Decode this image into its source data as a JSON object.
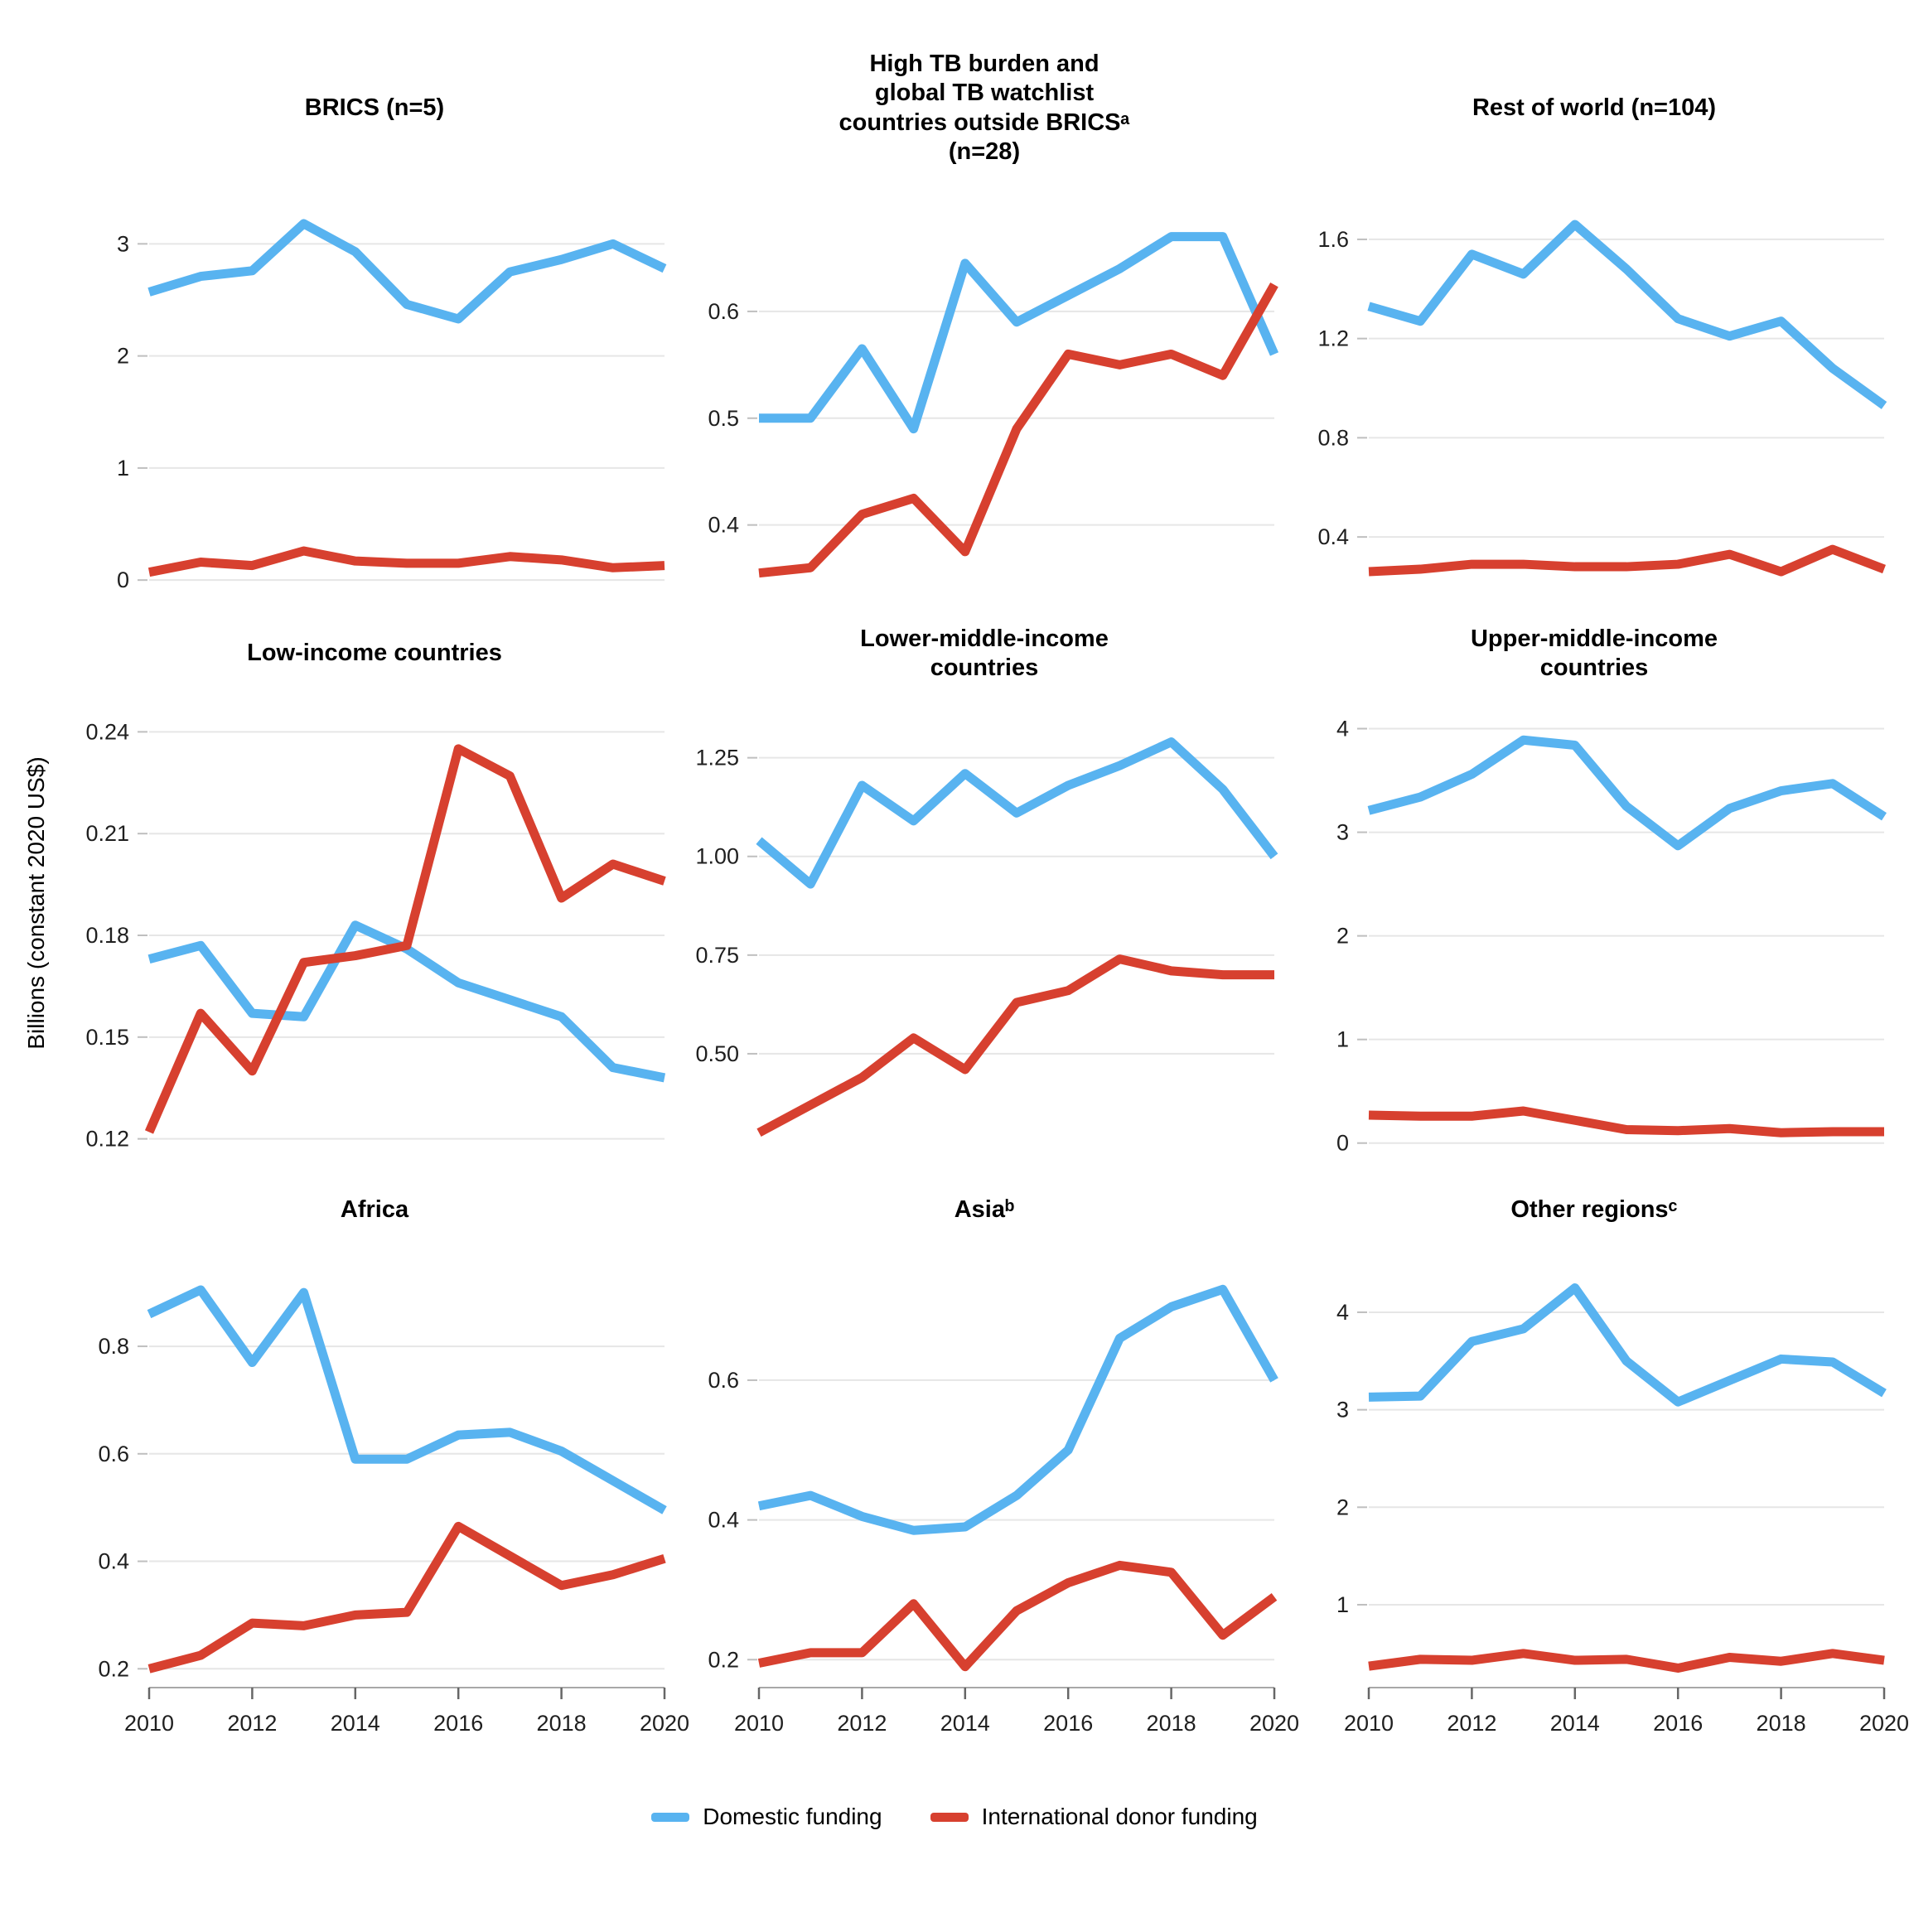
{
  "figure": {
    "y_axis_label": "Billions (constant 2020 US$)",
    "gridline_color": "#e6e6e6",
    "axis_line_color": "#a8a8a8",
    "tick_mark_color": "#bfbfbf",
    "tick_text_color": "#1f1f1f"
  },
  "legend": {
    "items": [
      {
        "label": "Domestic funding",
        "color": "#58B3F0"
      },
      {
        "label": "International donor funding",
        "color": "#D7402F"
      }
    ]
  },
  "chart_data": [
    {
      "type": "line",
      "id": "brics",
      "title": "BRICS (n=5)",
      "x": [
        2010,
        2011,
        2012,
        2013,
        2014,
        2015,
        2016,
        2017,
        2018,
        2019,
        2020
      ],
      "x_ticks": [
        2010,
        2012,
        2014,
        2016,
        2018,
        2020
      ],
      "y_tick_values": [
        0,
        1,
        2,
        3
      ],
      "y_tick_labels": [
        "0",
        "1",
        "2",
        "3"
      ],
      "ylim": [
        -0.08,
        3.35
      ],
      "series": [
        {
          "name": "Domestic funding",
          "color": "#58B3F0",
          "values": [
            2.57,
            2.71,
            2.76,
            3.18,
            2.93,
            2.46,
            2.33,
            2.75,
            2.86,
            3.0,
            2.78
          ]
        },
        {
          "name": "International donor funding",
          "color": "#D7402F",
          "values": [
            0.07,
            0.16,
            0.13,
            0.26,
            0.17,
            0.15,
            0.15,
            0.21,
            0.18,
            0.11,
            0.13
          ]
        }
      ]
    },
    {
      "type": "line",
      "id": "high-tb-burden-watchlist",
      "title": "High TB burden and\nglobal TB watchlist\ncountries outside BRICSᵃ\n(n=28)",
      "x": [
        2010,
        2011,
        2012,
        2013,
        2014,
        2015,
        2016,
        2017,
        2018,
        2019,
        2020
      ],
      "x_ticks": [
        2010,
        2012,
        2014,
        2016,
        2018,
        2020
      ],
      "y_tick_values": [
        0.4,
        0.5,
        0.6
      ],
      "y_tick_labels": [
        "0.4",
        "0.5",
        "0.6"
      ],
      "ylim": [
        0.34,
        0.7
      ],
      "series": [
        {
          "name": "Domestic funding",
          "color": "#58B3F0",
          "values": [
            0.5,
            0.5,
            0.565,
            0.49,
            0.645,
            0.59,
            0.615,
            0.64,
            0.67,
            0.67,
            0.56
          ]
        },
        {
          "name": "International donor funding",
          "color": "#D7402F",
          "values": [
            0.355,
            0.36,
            0.41,
            0.425,
            0.375,
            0.49,
            0.56,
            0.55,
            0.56,
            0.54,
            0.625
          ]
        }
      ]
    },
    {
      "type": "line",
      "id": "rest-of-world",
      "title": "Rest of world (n=104)",
      "x": [
        2010,
        2011,
        2012,
        2013,
        2014,
        2015,
        2016,
        2017,
        2018,
        2019,
        2020
      ],
      "x_ticks": [
        2010,
        2012,
        2014,
        2016,
        2018,
        2020
      ],
      "y_tick_values": [
        0.4,
        0.8,
        1.2,
        1.6
      ],
      "y_tick_labels": [
        "0.4",
        "0.8",
        "1.2",
        "1.6"
      ],
      "ylim": [
        0.19,
        1.74
      ],
      "series": [
        {
          "name": "Domestic funding",
          "color": "#58B3F0",
          "values": [
            1.33,
            1.27,
            1.54,
            1.46,
            1.66,
            1.48,
            1.28,
            1.21,
            1.27,
            1.08,
            0.93
          ]
        },
        {
          "name": "International donor funding",
          "color": "#D7402F",
          "values": [
            0.26,
            0.27,
            0.29,
            0.29,
            0.28,
            0.28,
            0.29,
            0.33,
            0.26,
            0.35,
            0.27
          ]
        }
      ]
    },
    {
      "type": "line",
      "id": "low-income",
      "title": "Low-income countries",
      "x": [
        2010,
        2011,
        2012,
        2013,
        2014,
        2015,
        2016,
        2017,
        2018,
        2019,
        2020
      ],
      "x_ticks": [
        2010,
        2012,
        2014,
        2016,
        2018,
        2020
      ],
      "y_tick_values": [
        0.12,
        0.15,
        0.18,
        0.21,
        0.24
      ],
      "y_tick_labels": [
        "0.12",
        "0.15",
        "0.18",
        "0.21",
        "0.24"
      ],
      "ylim": [
        0.116,
        0.244
      ],
      "series": [
        {
          "name": "Domestic funding",
          "color": "#58B3F0",
          "values": [
            0.173,
            0.177,
            0.157,
            0.156,
            0.183,
            0.176,
            0.166,
            0.161,
            0.156,
            0.141,
            0.138
          ]
        },
        {
          "name": "International donor funding",
          "color": "#D7402F",
          "values": [
            0.122,
            0.157,
            0.14,
            0.172,
            0.174,
            0.177,
            0.235,
            0.227,
            0.191,
            0.201,
            0.196
          ]
        }
      ]
    },
    {
      "type": "line",
      "id": "lower-middle-income",
      "title": "Lower-middle-income\ncountries",
      "x": [
        2010,
        2011,
        2012,
        2013,
        2014,
        2015,
        2016,
        2017,
        2018,
        2019,
        2020
      ],
      "x_ticks": [
        2010,
        2012,
        2014,
        2016,
        2018,
        2020
      ],
      "y_tick_values": [
        0.5,
        0.75,
        1.0,
        1.25
      ],
      "y_tick_labels": [
        "0.50",
        "0.75",
        "1.00",
        "1.25"
      ],
      "ylim": [
        0.25,
        1.35
      ],
      "series": [
        {
          "name": "Domestic funding",
          "color": "#58B3F0",
          "values": [
            1.04,
            0.93,
            1.18,
            1.09,
            1.21,
            1.11,
            1.18,
            1.23,
            1.29,
            1.17,
            1.0
          ]
        },
        {
          "name": "International donor funding",
          "color": "#D7402F",
          "values": [
            0.3,
            0.37,
            0.44,
            0.54,
            0.46,
            0.63,
            0.66,
            0.74,
            0.71,
            0.7,
            0.7
          ]
        }
      ]
    },
    {
      "type": "line",
      "id": "upper-middle-income",
      "title": "Upper-middle-income\ncountries",
      "x": [
        2010,
        2011,
        2012,
        2013,
        2014,
        2015,
        2016,
        2017,
        2018,
        2019,
        2020
      ],
      "x_ticks": [
        2010,
        2012,
        2014,
        2016,
        2018,
        2020
      ],
      "y_tick_values": [
        0,
        1,
        2,
        3,
        4
      ],
      "y_tick_labels": [
        "0",
        "1",
        "2",
        "3",
        "4"
      ],
      "ylim": [
        -0.09,
        4.1
      ],
      "series": [
        {
          "name": "Domestic funding",
          "color": "#58B3F0",
          "values": [
            3.21,
            3.34,
            3.56,
            3.89,
            3.84,
            3.25,
            2.87,
            3.23,
            3.4,
            3.47,
            3.15
          ]
        },
        {
          "name": "International donor funding",
          "color": "#D7402F",
          "values": [
            0.27,
            0.26,
            0.26,
            0.31,
            0.22,
            0.13,
            0.12,
            0.14,
            0.1,
            0.11,
            0.11
          ]
        }
      ]
    },
    {
      "type": "line",
      "id": "africa",
      "title": "Africa",
      "x": [
        2010,
        2011,
        2012,
        2013,
        2014,
        2015,
        2016,
        2017,
        2018,
        2019,
        2020
      ],
      "x_ticks": [
        2010,
        2012,
        2014,
        2016,
        2018,
        2020
      ],
      "y_tick_values": [
        0.2,
        0.4,
        0.6,
        0.8
      ],
      "y_tick_labels": [
        "0.2",
        "0.4",
        "0.6",
        "0.8"
      ],
      "ylim": [
        0.165,
        0.945
      ],
      "series": [
        {
          "name": "Domestic funding",
          "color": "#58B3F0",
          "values": [
            0.86,
            0.905,
            0.77,
            0.9,
            0.59,
            0.59,
            0.635,
            0.64,
            0.605,
            0.55,
            0.495
          ]
        },
        {
          "name": "International donor funding",
          "color": "#D7402F",
          "values": [
            0.2,
            0.225,
            0.285,
            0.28,
            0.3,
            0.305,
            0.465,
            0.41,
            0.355,
            0.375,
            0.405
          ]
        }
      ]
    },
    {
      "type": "line",
      "id": "asia",
      "title": "Asiaᵇ",
      "x": [
        2010,
        2011,
        2012,
        2013,
        2014,
        2015,
        2016,
        2017,
        2018,
        2019,
        2020
      ],
      "x_ticks": [
        2010,
        2012,
        2014,
        2016,
        2018,
        2020
      ],
      "y_tick_values": [
        0.2,
        0.4,
        0.6
      ],
      "y_tick_labels": [
        "0.2",
        "0.4",
        "0.6"
      ],
      "ylim": [
        0.16,
        0.76
      ],
      "series": [
        {
          "name": "Domestic funding",
          "color": "#58B3F0",
          "values": [
            0.42,
            0.435,
            0.405,
            0.385,
            0.39,
            0.435,
            0.5,
            0.66,
            0.705,
            0.73,
            0.6
          ]
        },
        {
          "name": "International donor funding",
          "color": "#D7402F",
          "values": [
            0.195,
            0.21,
            0.21,
            0.28,
            0.19,
            0.27,
            0.31,
            0.335,
            0.325,
            0.235,
            0.29
          ]
        }
      ]
    },
    {
      "type": "line",
      "id": "other-regions",
      "title": "Other regionsᶜ",
      "x": [
        2010,
        2011,
        2012,
        2013,
        2014,
        2015,
        2016,
        2017,
        2018,
        2019,
        2020
      ],
      "x_ticks": [
        2010,
        2012,
        2014,
        2016,
        2018,
        2020
      ],
      "y_tick_values": [
        1,
        2,
        3,
        4
      ],
      "y_tick_labels": [
        "1",
        "2",
        "3",
        "4"
      ],
      "ylim": [
        0.15,
        4.45
      ],
      "series": [
        {
          "name": "Domestic funding",
          "color": "#58B3F0",
          "values": [
            3.13,
            3.14,
            3.7,
            3.83,
            4.25,
            3.5,
            3.08,
            3.3,
            3.52,
            3.49,
            3.17
          ]
        },
        {
          "name": "International donor funding",
          "color": "#D7402F",
          "values": [
            0.37,
            0.44,
            0.43,
            0.5,
            0.43,
            0.44,
            0.35,
            0.46,
            0.42,
            0.5,
            0.43
          ]
        }
      ]
    }
  ]
}
